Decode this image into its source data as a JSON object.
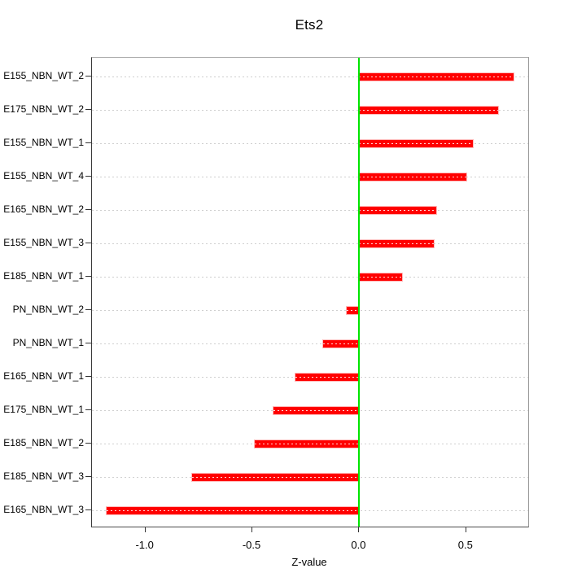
{
  "chart_data": {
    "type": "bar",
    "orientation": "horizontal",
    "title": "Ets2",
    "xlabel": "Z-value",
    "ylabel": "",
    "categories": [
      "E155_NBN_WT_2",
      "E175_NBN_WT_2",
      "E155_NBN_WT_1",
      "E155_NBN_WT_4",
      "E165_NBN_WT_2",
      "E155_NBN_WT_3",
      "E185_NBN_WT_1",
      "PN_NBN_WT_2",
      "PN_NBN_WT_1",
      "E165_NBN_WT_1",
      "E175_NBN_WT_1",
      "E185_NBN_WT_2",
      "E185_NBN_WT_3",
      "E165_NBN_WT_3"
    ],
    "values": [
      0.72,
      0.65,
      0.53,
      0.5,
      0.36,
      0.35,
      0.2,
      -0.06,
      -0.17,
      -0.3,
      -0.4,
      -0.49,
      -0.78,
      -1.18
    ],
    "x_ticks": [
      -1.0,
      -0.5,
      0.0,
      0.5
    ],
    "x_tick_labels": [
      "-1.0",
      "-0.5",
      "0.0",
      "0.5"
    ],
    "xlim": [
      -1.25,
      0.79
    ],
    "zero_line_x": 0,
    "grid": "dotted-horizontal",
    "legend": "none",
    "colors": {
      "bar": "#ff0000",
      "zero_line": "#00e500",
      "grid": "#cfcfcf",
      "box": "#9a9a9a",
      "text": "#000000"
    }
  }
}
